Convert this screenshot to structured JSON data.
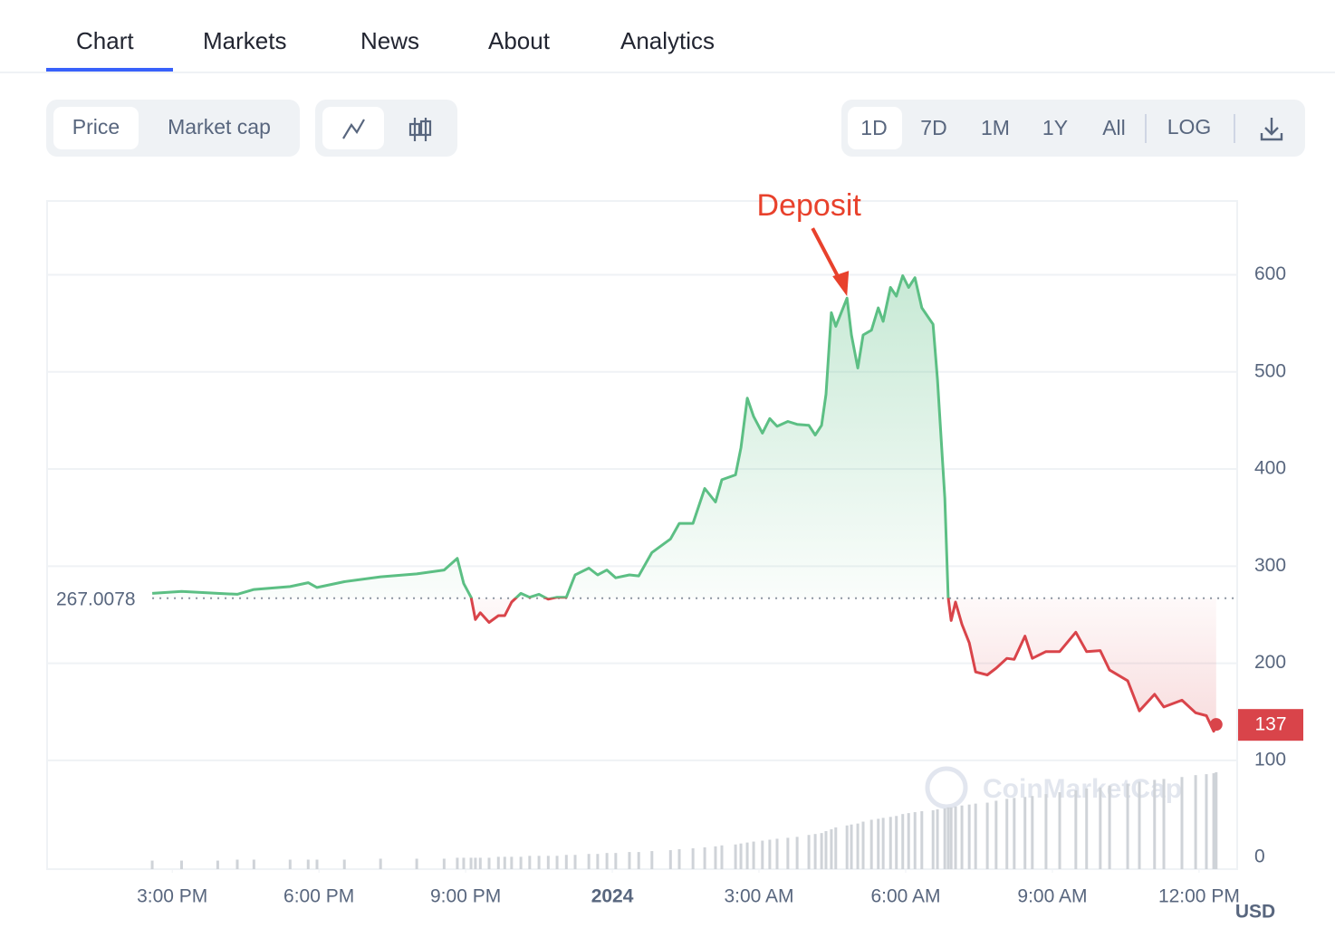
{
  "tabs": [
    "Chart",
    "Markets",
    "News",
    "About",
    "Analytics"
  ],
  "active_tab": 0,
  "price_toggle": [
    "Price",
    "Market cap"
  ],
  "ranges": [
    "1D",
    "7D",
    "1M",
    "1Y",
    "All"
  ],
  "scale_button": "LOG",
  "chart_data": {
    "type": "line",
    "x": [
      -9.41,
      -8.81,
      -8.07,
      -7.67,
      -7.33,
      -6.59,
      -6.22,
      -6.04,
      -5.48,
      -4.74,
      -4.0,
      -3.44,
      -3.17,
      -3.04,
      -2.89,
      -2.8,
      -2.7,
      -2.52,
      -2.33,
      -2.2,
      -2.06,
      -1.87,
      -1.69,
      -1.5,
      -1.31,
      -1.13,
      -0.94,
      -0.76,
      -0.48,
      -0.3,
      -0.11,
      0.07,
      0.35,
      0.54,
      0.81,
      1.19,
      1.37,
      1.65,
      1.89,
      2.11,
      2.24,
      2.52,
      2.63,
      2.76,
      2.89,
      3.07,
      3.22,
      3.37,
      3.59,
      3.78,
      4.02,
      4.15,
      4.28,
      4.37,
      4.48,
      4.57,
      4.8,
      4.89,
      5.02,
      5.13,
      5.3,
      5.44,
      5.54,
      5.69,
      5.81,
      5.94,
      6.06,
      6.19,
      6.33,
      6.56,
      6.65,
      6.8,
      6.87,
      6.93,
      7.02,
      7.15,
      7.3,
      7.43,
      7.67,
      7.85,
      8.07,
      8.22,
      8.44,
      8.59,
      8.87,
      9.15,
      9.48,
      9.7,
      9.98,
      10.17,
      10.54,
      10.78,
      11.09,
      11.28,
      11.65,
      11.93,
      12.15,
      12.3,
      12.35
    ],
    "values": [
      272,
      274,
      272,
      271,
      276,
      279,
      283,
      278,
      284,
      289,
      292,
      296,
      308,
      282,
      268,
      245,
      252,
      242,
      249,
      249,
      263,
      272,
      268,
      271,
      266,
      268,
      268,
      291,
      298,
      291,
      296,
      288,
      291,
      290,
      314,
      328,
      344,
      344,
      380,
      366,
      389,
      394,
      422,
      473,
      454,
      437,
      452,
      444,
      449,
      446,
      445,
      435,
      445,
      477,
      561,
      547,
      576,
      538,
      504,
      538,
      543,
      566,
      552,
      587,
      578,
      599,
      587,
      597,
      566,
      549,
      492,
      370,
      268,
      244,
      263,
      240,
      221,
      191,
      188,
      195,
      205,
      204,
      228,
      205,
      212,
      212,
      232,
      212,
      213,
      193,
      182,
      151,
      168,
      155,
      162,
      149,
      146,
      130,
      137
    ],
    "volume": [
      9,
      9,
      9,
      10,
      10,
      10,
      10,
      10,
      10,
      11,
      11,
      11,
      12,
      12,
      12,
      12,
      12,
      12,
      13,
      13,
      13,
      13,
      14,
      14,
      14,
      14,
      15,
      15,
      16,
      16,
      17,
      17,
      18,
      18,
      19,
      20,
      21,
      22,
      23,
      24,
      25,
      26,
      27,
      28,
      29,
      30,
      31,
      32,
      33,
      34,
      36,
      37,
      38,
      40,
      42,
      44,
      46,
      47,
      48,
      50,
      52,
      53,
      54,
      55,
      56,
      58,
      59,
      60,
      61,
      62,
      63,
      64,
      65,
      65,
      66,
      67,
      68,
      69,
      70,
      72,
      74,
      75,
      76,
      77,
      79,
      81,
      83,
      85,
      86,
      88,
      90,
      92,
      94,
      95,
      97,
      99,
      100,
      101,
      102
    ],
    "reference": 267.0078,
    "current": 137,
    "up_color": "#5cbf84",
    "down_color": "#d9444a",
    "volume_color": "#cfd3d8",
    "annotation": {
      "text": "Deposit",
      "x": 4.8,
      "y": 578,
      "color": "#e8412c"
    },
    "watermark": "CoinMarketCap",
    "currency": "USD",
    "xlim": [
      -11.56,
      12.78
    ],
    "xticks": [
      {
        "value": -9,
        "label": "3:00 PM"
      },
      {
        "value": -6,
        "label": "6:00 PM"
      },
      {
        "value": -3,
        "label": "9:00 PM"
      },
      {
        "value": 0,
        "label": "2024"
      },
      {
        "value": 3,
        "label": "3:00 AM"
      },
      {
        "value": 6,
        "label": "6:00 AM"
      },
      {
        "value": 9,
        "label": "9:00 AM"
      },
      {
        "value": 12,
        "label": "12:00 PM"
      }
    ],
    "ylim": [
      -12,
      676
    ],
    "yticks": [
      0,
      100,
      200,
      300,
      400,
      500,
      600
    ],
    "grid": true
  }
}
